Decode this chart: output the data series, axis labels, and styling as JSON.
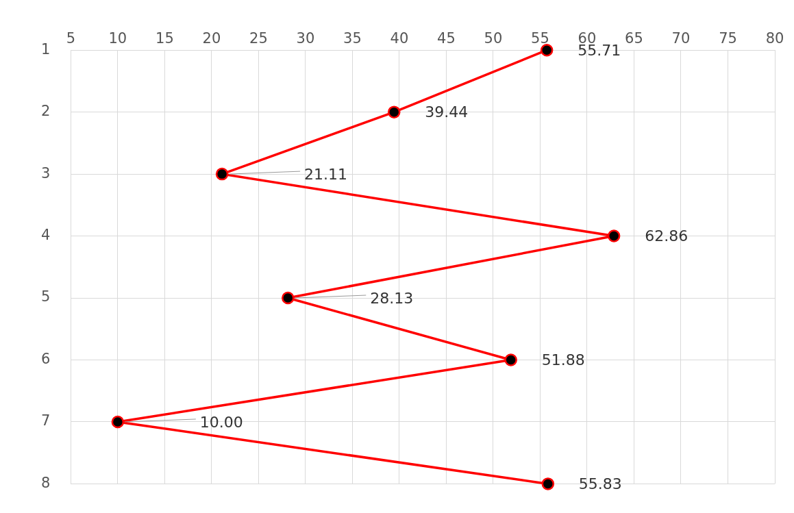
{
  "chart_data": {
    "type": "line",
    "orientation": "horizontal",
    "categories": [
      "1",
      "2",
      "3",
      "4",
      "5",
      "6",
      "7",
      "8"
    ],
    "values": [
      55.71,
      39.44,
      21.11,
      62.86,
      28.13,
      51.88,
      10.0,
      55.83
    ],
    "value_labels": [
      "55.71",
      "39.44",
      "21.11",
      "62.86",
      "28.13",
      "51.88",
      "10.00",
      "55.83"
    ],
    "color": "#ff0000",
    "marker": "circle",
    "grid": true,
    "xlim": [
      5,
      80
    ],
    "xticks": [
      5,
      10,
      15,
      20,
      25,
      30,
      35,
      40,
      45,
      50,
      55,
      60,
      65,
      70,
      75,
      80
    ]
  }
}
